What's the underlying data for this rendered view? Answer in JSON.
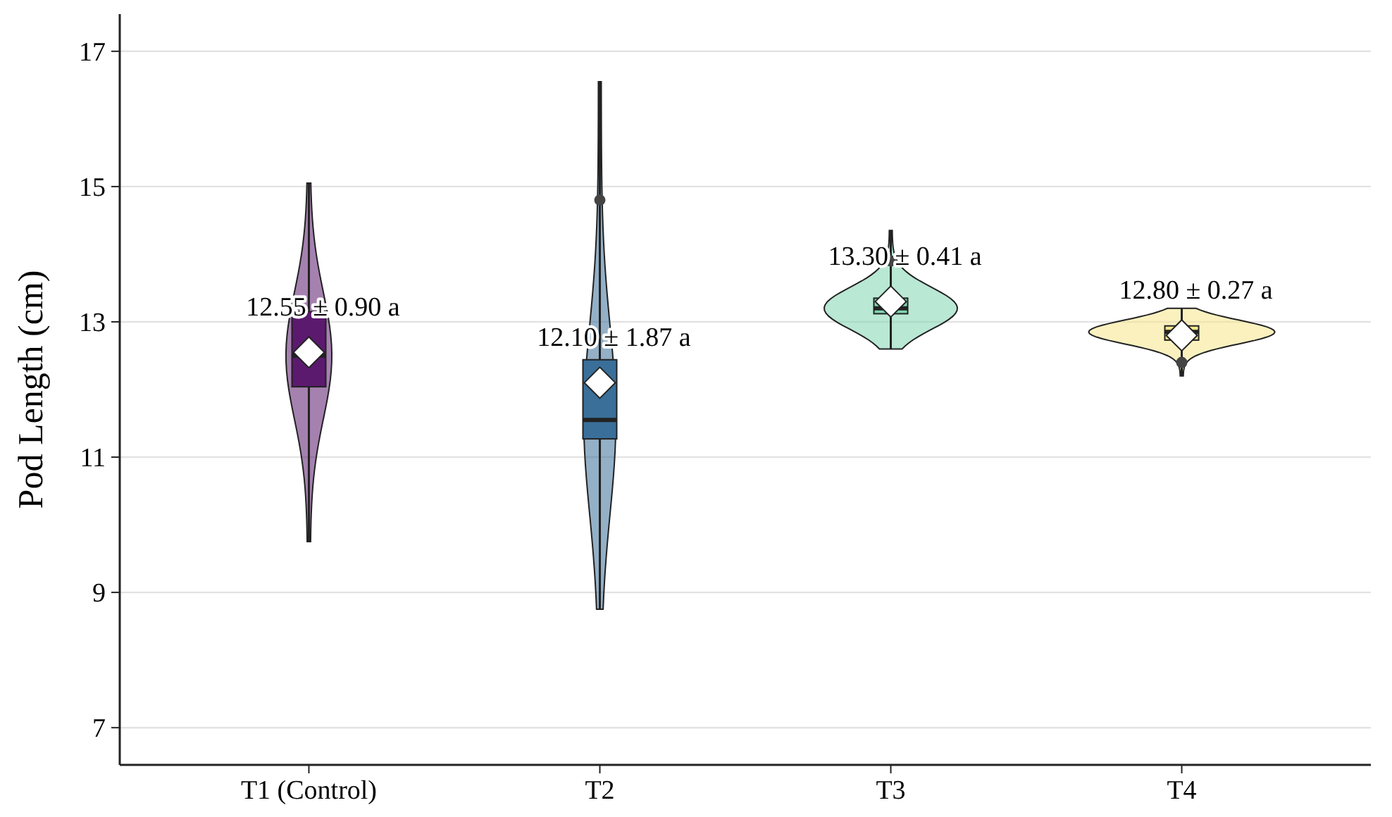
{
  "chart_data": {
    "type": "box",
    "ylabel": "Pod Length (cm)",
    "categories": [
      "T1 (Control)",
      "T2",
      "T3",
      "T4"
    ],
    "boxes": [
      {
        "low": 9.75,
        "q1": 12.04,
        "median": 12.5,
        "q3": 13.15,
        "high": 15.05,
        "mean": 12.55
      },
      {
        "low": 8.75,
        "q1": 11.27,
        "median": 11.55,
        "q3": 12.44,
        "high": 16.55,
        "mean": 12.1,
        "outliers": [
          14.8
        ]
      },
      {
        "low": 12.6,
        "q1": 13.12,
        "median": 13.2,
        "q3": 13.35,
        "high": 14.35,
        "mean": 13.3,
        "outliers": [
          13.9
        ]
      },
      {
        "low": 12.2,
        "q1": 12.73,
        "median": 12.85,
        "q3": 12.94,
        "high": 13.2,
        "mean": 12.8,
        "outliers": [
          12.4
        ]
      }
    ],
    "colors": [
      "#5b1a6e",
      "#3a6f99",
      "#7fd6b0",
      "#f5e68a"
    ],
    "ylim": [
      6.45,
      17.55
    ],
    "yticks": [
      7,
      9,
      11,
      13,
      15,
      17
    ],
    "grid": "y",
    "marker": "diamond",
    "annotations": [
      {
        "text": "12.55 ± 0.90 a",
        "x": "T1 (Control)",
        "y": 12.55
      },
      {
        "text": "12.10 ± 1.87 a",
        "x": "T2",
        "y": 12.1
      },
      {
        "text": "13.30 ± 0.41 a",
        "x": "T3",
        "y": 13.3
      },
      {
        "text": "12.80 ± 0.27 a",
        "x": "T4",
        "y": 12.8
      }
    ]
  }
}
